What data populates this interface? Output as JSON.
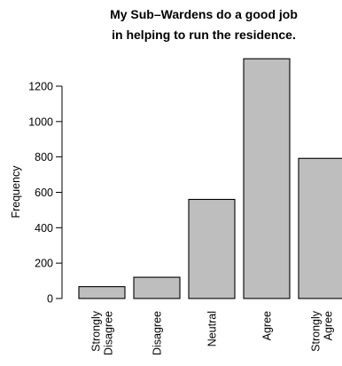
{
  "chart_data": {
    "type": "bar",
    "title_lines": [
      "My Sub–Wardens do a good job",
      "in helping to run the residence."
    ],
    "ylabel": "Frequency",
    "xlabel": "",
    "categories": [
      [
        "Strongly",
        "Disagree"
      ],
      [
        "Disagree"
      ],
      [
        "Neutral"
      ],
      [
        "Agree"
      ],
      [
        "Strongly",
        "Agree"
      ]
    ],
    "values": [
      67,
      120,
      560,
      1355,
      792
    ],
    "y_ticks": [
      0,
      200,
      400,
      600,
      800,
      1000,
      1200
    ],
    "ylim": [
      0,
      1400
    ],
    "bar_color": "#bebebe",
    "grid": false,
    "legend": false
  }
}
